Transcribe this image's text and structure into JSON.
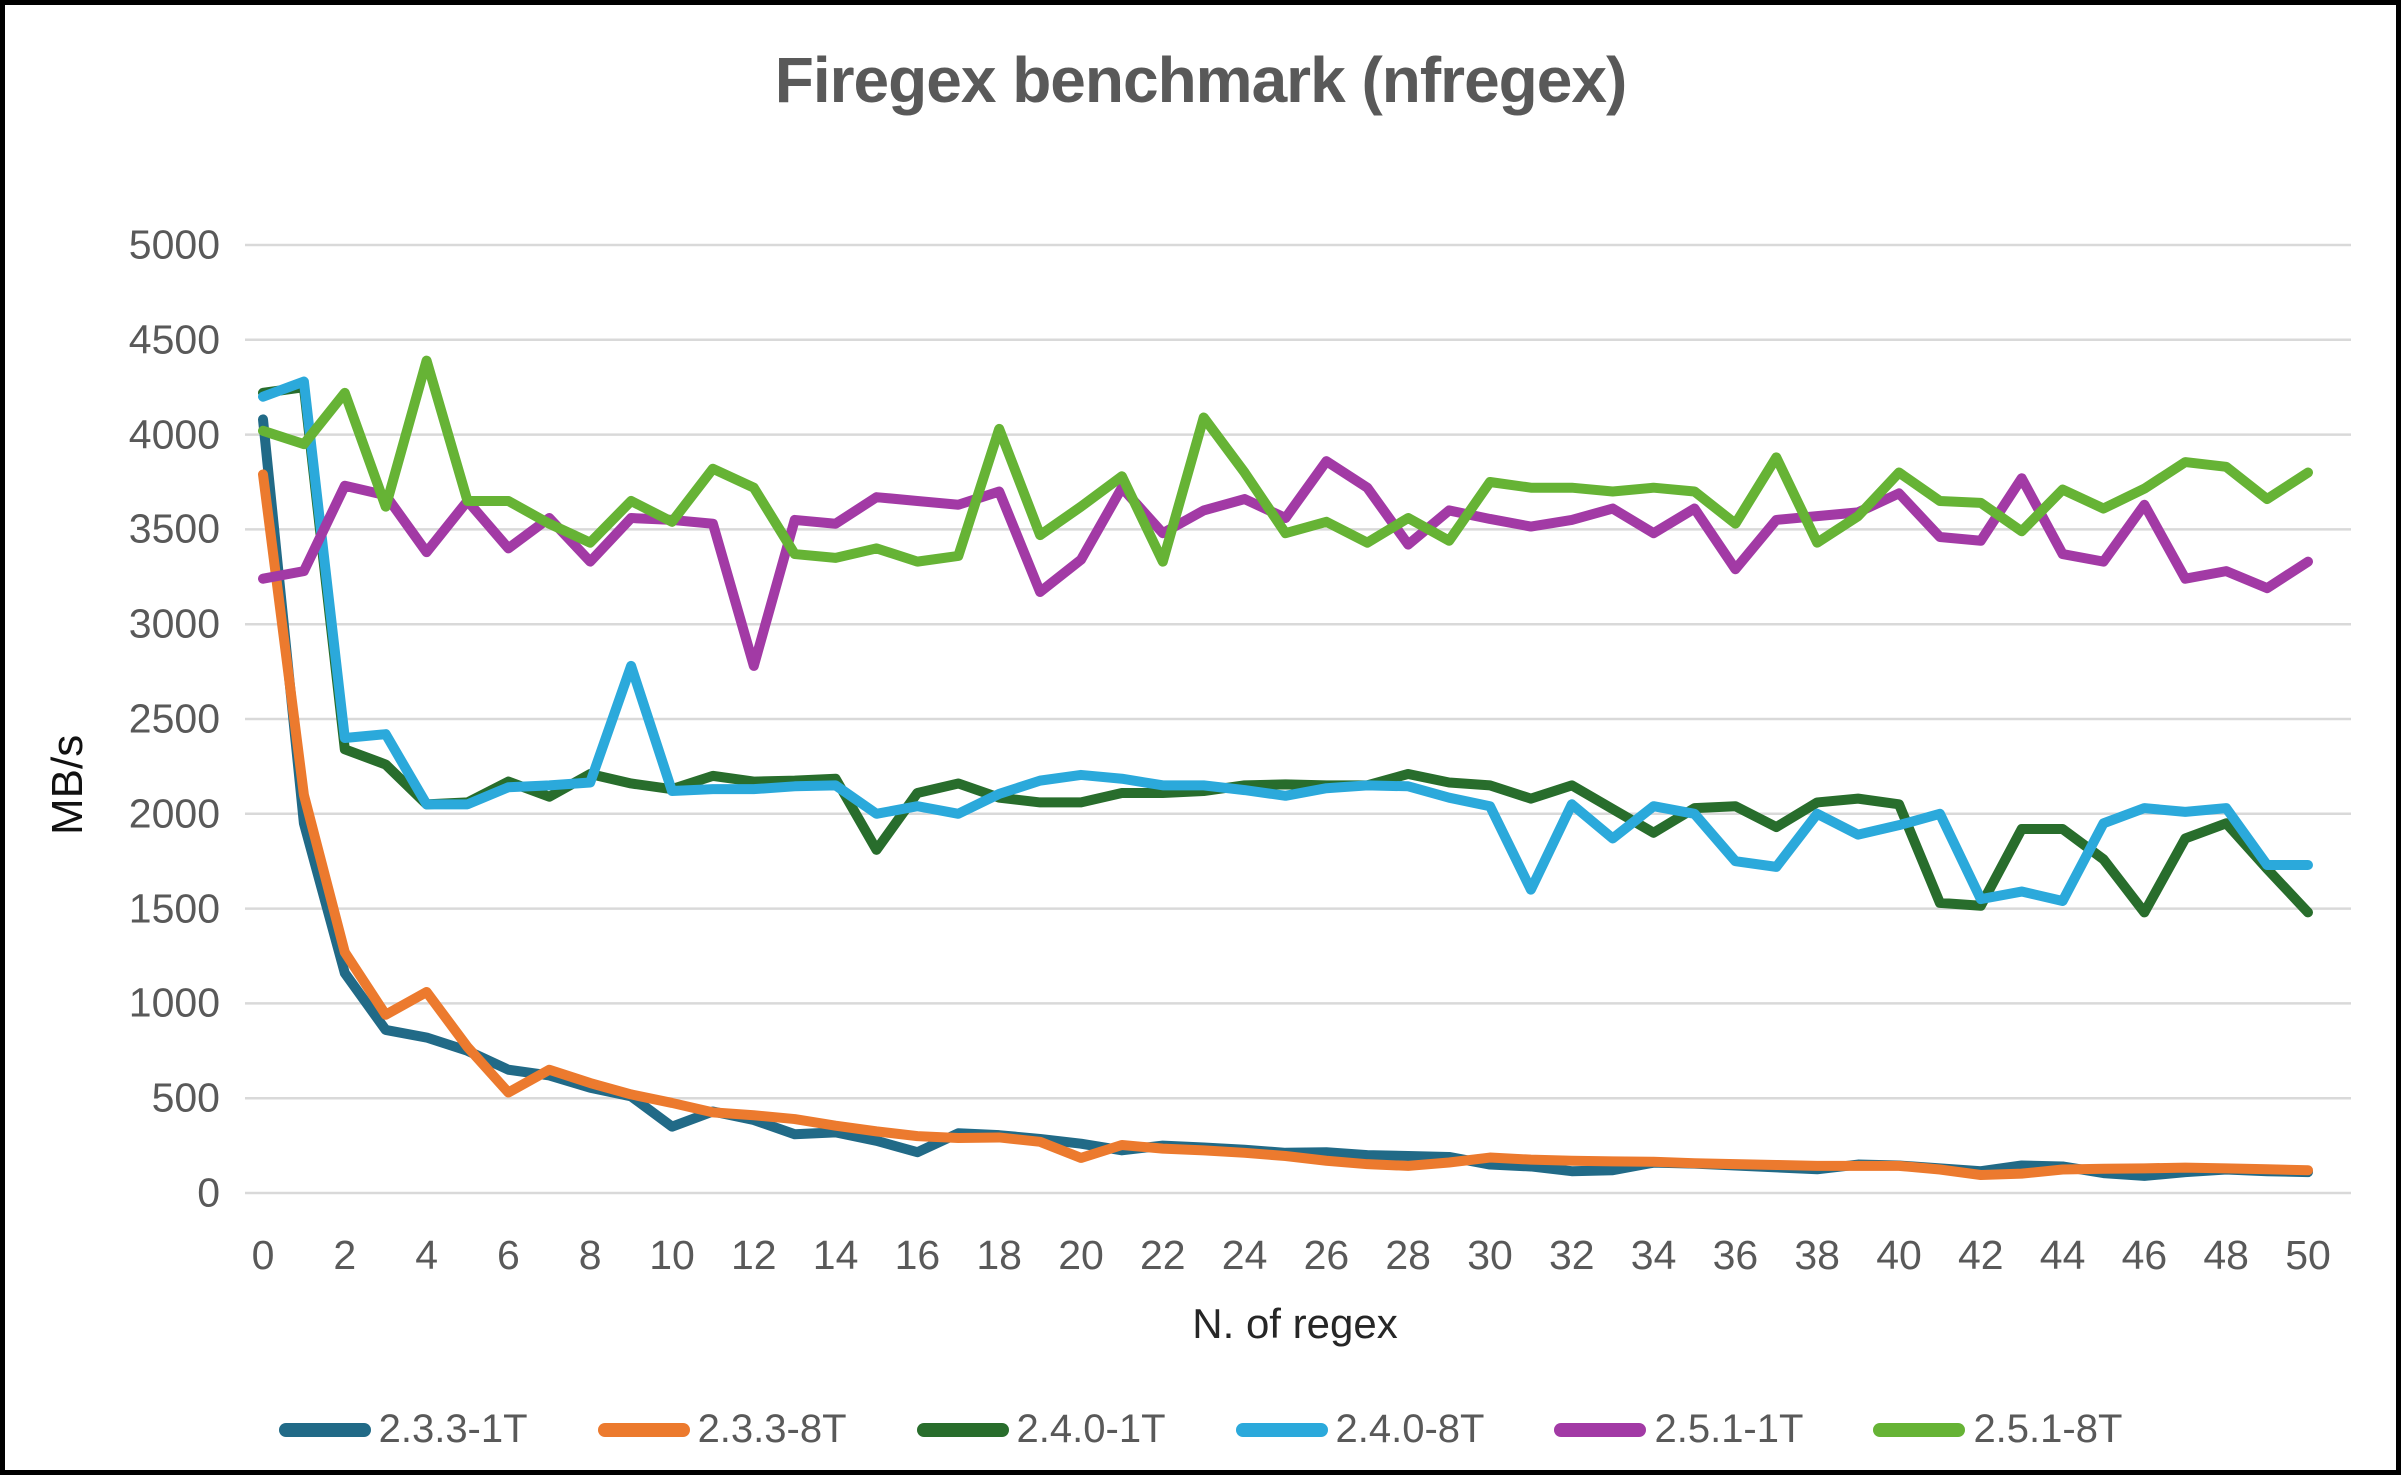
{
  "title": "Firegex benchmark (nfregex)",
  "colors": {
    "background": "#ffffff",
    "frame": "#000000",
    "grid": "#d9d9d9",
    "tick_text": "#595959",
    "title_text": "#595959",
    "axis_title_text": "#1a1a1a"
  },
  "chart_data": {
    "type": "line",
    "title": "Firegex benchmark (nfregex)",
    "xlabel": "N. of regex",
    "ylabel": "MB/s",
    "ylim": [
      0,
      5000
    ],
    "y_ticks": [
      0,
      500,
      1000,
      1500,
      2000,
      2500,
      3000,
      3500,
      4000,
      4500,
      5000
    ],
    "x_ticks": [
      0,
      2,
      4,
      6,
      8,
      10,
      12,
      14,
      16,
      18,
      20,
      22,
      24,
      26,
      28,
      30,
      32,
      34,
      36,
      38,
      40,
      42,
      44,
      46,
      48,
      50
    ],
    "grid": true,
    "legend_position": "bottom",
    "x": [
      0,
      1,
      2,
      3,
      4,
      5,
      6,
      7,
      8,
      9,
      10,
      11,
      12,
      13,
      14,
      15,
      16,
      17,
      18,
      19,
      20,
      21,
      22,
      23,
      24,
      25,
      26,
      27,
      28,
      29,
      30,
      31,
      32,
      33,
      34,
      35,
      36,
      37,
      38,
      39,
      40,
      41,
      42,
      43,
      44,
      45,
      46,
      47,
      48,
      49,
      50
    ],
    "series": [
      {
        "name": "2.3.3-1T",
        "color": "#216a87",
        "values": [
          4080,
          1950,
          1160,
          860,
          820,
          750,
          650,
          620,
          555,
          510,
          350,
          430,
          385,
          310,
          320,
          275,
          215,
          315,
          305,
          285,
          260,
          225,
          250,
          240,
          228,
          212,
          215,
          200,
          195,
          190,
          150,
          140,
          115,
          120,
          160,
          155,
          145,
          135,
          125,
          150,
          145,
          130,
          115,
          145,
          140,
          105,
          90,
          110,
          124,
          115,
          110
        ]
      },
      {
        "name": "2.3.3-8T",
        "color": "#ec7a2e",
        "values": [
          3790,
          2100,
          1270,
          940,
          1060,
          770,
          530,
          650,
          580,
          520,
          475,
          425,
          410,
          390,
          355,
          325,
          300,
          290,
          293,
          270,
          185,
          253,
          234,
          225,
          212,
          195,
          170,
          152,
          143,
          161,
          187,
          176,
          170,
          167,
          165,
          157,
          152,
          148,
          143,
          143,
          143,
          124,
          95,
          102,
          124,
          128,
          130,
          134,
          130,
          125,
          120
        ]
      },
      {
        "name": "2.4.0-1T",
        "color": "#286d2c",
        "values": [
          4220,
          4250,
          2340,
          2260,
          2050,
          2060,
          2170,
          2090,
          2210,
          2160,
          2130,
          2200,
          2170,
          2175,
          2185,
          1810,
          2110,
          2160,
          2085,
          2060,
          2060,
          2110,
          2110,
          2120,
          2150,
          2155,
          2150,
          2150,
          2210,
          2165,
          2150,
          2080,
          2150,
          2025,
          1900,
          2030,
          2040,
          1930,
          2060,
          2080,
          2050,
          1530,
          1515,
          1920,
          1920,
          1760,
          1480,
          1870,
          1950,
          1710,
          1480
        ]
      },
      {
        "name": "2.4.0-8T",
        "color": "#2ba9db",
        "values": [
          4200,
          4280,
          2400,
          2420,
          2050,
          2050,
          2140,
          2150,
          2165,
          2780,
          2120,
          2130,
          2130,
          2145,
          2150,
          2000,
          2040,
          2000,
          2105,
          2175,
          2205,
          2185,
          2150,
          2150,
          2125,
          2095,
          2135,
          2150,
          2145,
          2085,
          2040,
          1600,
          2050,
          1870,
          2040,
          2000,
          1750,
          1720,
          2000,
          1890,
          1940,
          2000,
          1550,
          1590,
          1540,
          1950,
          2030,
          2010,
          2030,
          1730,
          1730
        ]
      },
      {
        "name": "2.5.1-1T",
        "color": "#a23aa5",
        "values": [
          3240,
          3280,
          3730,
          3680,
          3380,
          3650,
          3400,
          3560,
          3330,
          3560,
          3550,
          3530,
          2780,
          3550,
          3530,
          3670,
          3650,
          3630,
          3700,
          3170,
          3340,
          3720,
          3480,
          3600,
          3660,
          3560,
          3860,
          3720,
          3420,
          3600,
          3555,
          3515,
          3550,
          3610,
          3480,
          3610,
          3290,
          3550,
          3570,
          3590,
          3690,
          3460,
          3440,
          3770,
          3370,
          3330,
          3630,
          3240,
          3280,
          3190,
          3330
        ]
      },
      {
        "name": "2.5.1-8T",
        "color": "#66b335",
        "values": [
          4020,
          3950,
          4220,
          3620,
          4390,
          3650,
          3650,
          3530,
          3430,
          3650,
          3540,
          3820,
          3720,
          3370,
          3350,
          3400,
          3330,
          3360,
          4030,
          3470,
          3620,
          3780,
          3330,
          4090,
          3800,
          3480,
          3540,
          3430,
          3560,
          3440,
          3750,
          3720,
          3720,
          3700,
          3720,
          3700,
          3530,
          3880,
          3430,
          3570,
          3800,
          3650,
          3640,
          3490,
          3710,
          3610,
          3715,
          3855,
          3830,
          3660,
          3800
        ]
      }
    ]
  },
  "layout_note": ""
}
